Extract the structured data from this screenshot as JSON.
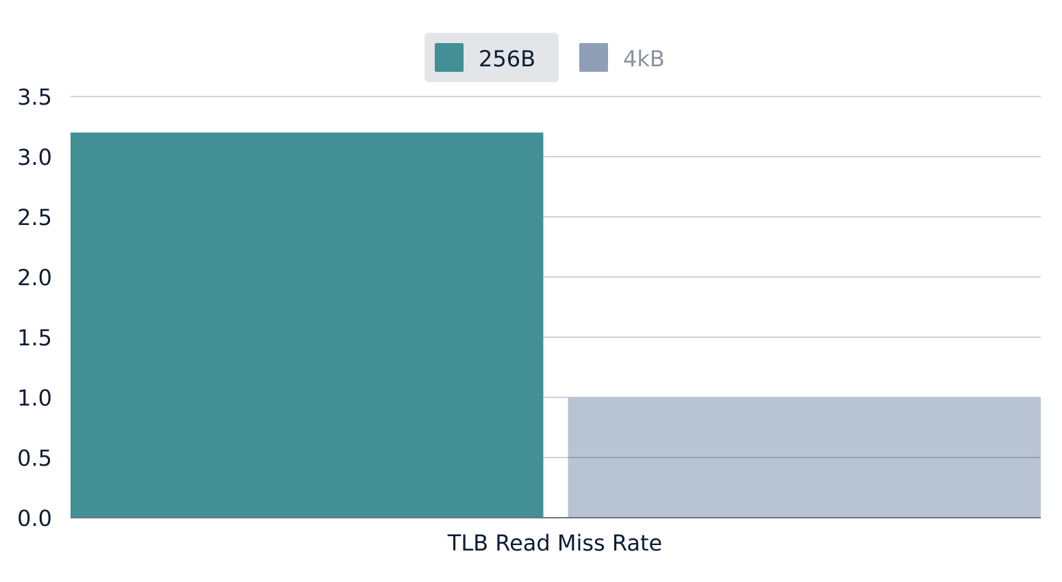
{
  "chart_data": {
    "type": "bar",
    "categories": [
      "TLB Read Miss Rate"
    ],
    "series": [
      {
        "name": "256B",
        "values": [
          3.2
        ],
        "color": "#428f95",
        "legend_active": true
      },
      {
        "name": "4kB",
        "values": [
          1.0
        ],
        "color": "#b8c4d3",
        "legend_swatch_color": "#8f9fb7",
        "legend_active": false
      }
    ],
    "yticks": [
      "0.0",
      "0.5",
      "1.0",
      "1.5",
      "2.0",
      "2.5",
      "3.0",
      "3.5"
    ],
    "ylim": [
      0,
      3.5
    ],
    "grid": true,
    "legend_position": "top-center",
    "title": "",
    "xlabel": "",
    "ylabel": ""
  }
}
